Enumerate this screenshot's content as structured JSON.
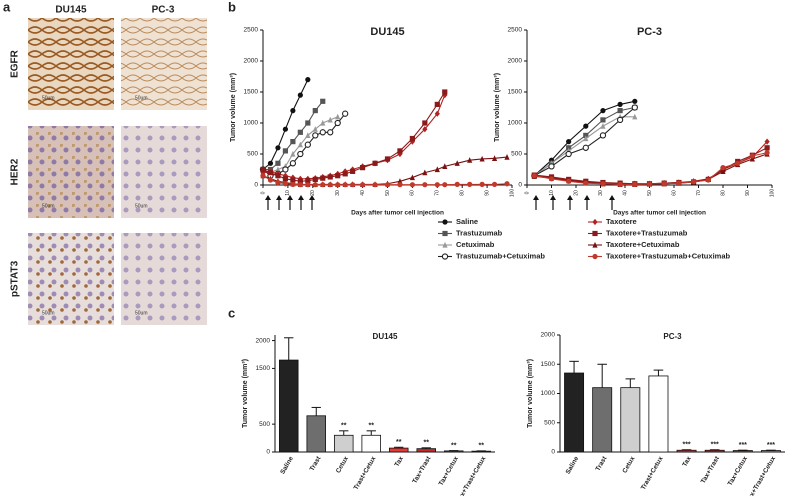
{
  "panel_a": {
    "label": "a",
    "columns": [
      "DU145",
      "PC-3"
    ],
    "rows": [
      "EGFR",
      "HER2",
      "pSTAT3"
    ],
    "scale_bar": "50um"
  },
  "panel_b_label": "b",
  "panel_c_label": "c",
  "chart_data": [
    {
      "type": "line",
      "title": "DU145",
      "y_label": "Tumor volume (mm³)",
      "x_label": "Days after tumor cell injection",
      "x": [
        0,
        3,
        6,
        9,
        12,
        15,
        18,
        21,
        24,
        27,
        30,
        33,
        36,
        40,
        45,
        50,
        55,
        60,
        65,
        70,
        73,
        78,
        83,
        88,
        93,
        98
      ],
      "xlim": [
        0,
        100
      ],
      "xticks": [
        0,
        10,
        20,
        30,
        40,
        50,
        60,
        70,
        80,
        90,
        100
      ],
      "ylim": [
        0,
        2500
      ],
      "yticks": [
        0,
        500,
        1000,
        1500,
        2000,
        2500
      ],
      "series": [
        {
          "name": "Saline",
          "color": "#111111",
          "marker": "circle",
          "values": [
            250,
            350,
            600,
            900,
            1200,
            1450,
            1700,
            null,
            null,
            null,
            null,
            null,
            null,
            null,
            null,
            null,
            null,
            null,
            null,
            null,
            null,
            null,
            null,
            null,
            null,
            null
          ]
        },
        {
          "name": "Trastuzumab",
          "color": "#555555",
          "marker": "square",
          "values": [
            250,
            250,
            350,
            550,
            700,
            850,
            1000,
            1200,
            1350,
            null,
            null,
            null,
            null,
            null,
            null,
            null,
            null,
            null,
            null,
            null,
            null,
            null,
            null,
            null,
            null,
            null
          ]
        },
        {
          "name": "Cetuximab",
          "color": "#999999",
          "marker": "triangle",
          "values": [
            200,
            200,
            250,
            300,
            500,
            650,
            800,
            900,
            1000,
            1050,
            1100,
            null,
            null,
            null,
            null,
            null,
            null,
            null,
            null,
            null,
            null,
            null,
            null,
            null,
            null,
            null
          ]
        },
        {
          "name": "Trastuzumab+Cetuximab",
          "color": "#222222",
          "marker": "open-circle",
          "values": [
            250,
            150,
            180,
            250,
            350,
            500,
            650,
            800,
            850,
            850,
            1000,
            1150,
            null,
            null,
            null,
            null,
            null,
            null,
            null,
            null,
            null,
            null,
            null,
            null,
            null,
            null
          ]
        },
        {
          "name": "Taxotere",
          "color": "#b22222",
          "marker": "diamond",
          "values": [
            200,
            220,
            180,
            150,
            120,
            100,
            100,
            110,
            130,
            150,
            180,
            220,
            250,
            300,
            350,
            400,
            500,
            700,
            900,
            1150,
            1450,
            null,
            null,
            null,
            null,
            null
          ]
        },
        {
          "name": "Taxotere+Trastuzumab",
          "color": "#8b1a1a",
          "marker": "square",
          "values": [
            250,
            200,
            150,
            100,
            80,
            60,
            70,
            90,
            110,
            130,
            150,
            180,
            220,
            280,
            350,
            420,
            550,
            750,
            1000,
            1300,
            1500,
            null,
            null,
            null,
            null,
            null
          ]
        },
        {
          "name": "Taxotere+Cetuximab",
          "color": "#7a1010",
          "marker": "triangle",
          "values": [
            150,
            100,
            60,
            40,
            20,
            10,
            10,
            10,
            10,
            10,
            10,
            10,
            10,
            10,
            10,
            20,
            60,
            120,
            200,
            250,
            300,
            350,
            400,
            420,
            430,
            450
          ]
        },
        {
          "name": "Taxotere+Trastuzumab+Cetuximab",
          "color": "#c0392b",
          "marker": "circle",
          "values": [
            150,
            80,
            40,
            20,
            10,
            5,
            5,
            5,
            5,
            5,
            5,
            5,
            5,
            5,
            5,
            5,
            5,
            5,
            5,
            5,
            5,
            10,
            10,
            10,
            10,
            20
          ]
        }
      ]
    },
    {
      "type": "line",
      "title": "PC-3",
      "y_label": "Tumor volume (mm³)",
      "x_label": "Days after tumor cell injection",
      "x": [
        3,
        10,
        17,
        24,
        31,
        38,
        44,
        50,
        56,
        62,
        68,
        74,
        80,
        86,
        92,
        98
      ],
      "xlim": [
        0,
        100
      ],
      "xticks": [
        0,
        10,
        20,
        30,
        40,
        50,
        60,
        70,
        80,
        90,
        100
      ],
      "ylim": [
        0,
        2500
      ],
      "yticks": [
        0,
        500,
        1000,
        1500,
        2000,
        2500
      ],
      "series": [
        {
          "color": "#111111",
          "marker": "circle",
          "values": [
            150,
            400,
            700,
            950,
            1200,
            1300,
            1350,
            null,
            null,
            null,
            null,
            null,
            null,
            null,
            null,
            null
          ]
        },
        {
          "color": "#555555",
          "marker": "square",
          "values": [
            150,
            350,
            600,
            800,
            1050,
            1200,
            1250,
            null,
            null,
            null,
            null,
            null,
            null,
            null,
            null,
            null
          ]
        },
        {
          "color": "#999999",
          "marker": "triangle",
          "values": [
            150,
            350,
            550,
            750,
            950,
            1100,
            1100,
            null,
            null,
            null,
            null,
            null,
            null,
            null,
            null,
            null
          ]
        },
        {
          "color": "#222222",
          "marker": "open-circle",
          "values": [
            150,
            300,
            500,
            600,
            800,
            1050,
            1250,
            null,
            null,
            null,
            null,
            null,
            null,
            null,
            null,
            null
          ]
        },
        {
          "color": "#b22222",
          "marker": "diamond",
          "values": [
            150,
            120,
            80,
            50,
            30,
            20,
            20,
            20,
            30,
            40,
            60,
            100,
            250,
            350,
            450,
            700
          ]
        },
        {
          "color": "#8b1a1a",
          "marker": "square",
          "values": [
            160,
            130,
            90,
            60,
            40,
            30,
            20,
            20,
            30,
            40,
            50,
            90,
            250,
            380,
            480,
            600
          ]
        },
        {
          "color": "#7a1010",
          "marker": "triangle",
          "values": [
            140,
            110,
            70,
            40,
            20,
            10,
            10,
            15,
            20,
            30,
            50,
            90,
            220,
            330,
            420,
            500
          ]
        },
        {
          "color": "#c0392b",
          "marker": "circle",
          "values": [
            150,
            100,
            60,
            30,
            20,
            10,
            10,
            15,
            20,
            30,
            50,
            80,
            280,
            350,
            470,
            520
          ]
        }
      ]
    },
    {
      "type": "bar",
      "title": "DU145",
      "y_label": "Tumor volume (mm³)",
      "categories": [
        "Saline",
        "Trast",
        "Cetux",
        "Trast+Cetux",
        "Tax",
        "Tax+Trast",
        "Tax+Cetux",
        "Tax+Trast+Cetux"
      ],
      "values": [
        1650,
        650,
        300,
        300,
        70,
        60,
        20,
        15
      ],
      "errors": [
        400,
        150,
        80,
        80,
        15,
        15,
        5,
        5
      ],
      "colors": [
        "#222222",
        "#6e6e6e",
        "#cfcfcf",
        "#ffffff",
        "#e53935",
        "#c62828",
        "#d32f2f",
        "#e57373"
      ],
      "annotations": [
        null,
        null,
        "**",
        "**",
        "**",
        "**",
        "**",
        "**"
      ],
      "ylim": [
        0,
        2100
      ],
      "yticks": [
        0,
        500,
        1500,
        2000
      ]
    },
    {
      "type": "bar",
      "title": "PC-3",
      "y_label": "Tumor volume (mm³)",
      "categories": [
        "Saline",
        "Trast",
        "Cetux",
        "Trast+Cetux",
        "Tax",
        "Tax+Trast",
        "Tax+Cetux",
        "Tax+Trast+Cetux"
      ],
      "values": [
        1350,
        1100,
        1100,
        1300,
        30,
        30,
        25,
        25
      ],
      "errors": [
        200,
        400,
        150,
        100,
        8,
        8,
        6,
        6
      ],
      "colors": [
        "#222222",
        "#6e6e6e",
        "#cfcfcf",
        "#ffffff",
        "#e53935",
        "#c62828",
        "#d32f2f",
        "#e57373"
      ],
      "annotations": [
        null,
        null,
        null,
        null,
        "***",
        "***",
        "***",
        "***"
      ],
      "ylim": [
        0,
        2000
      ],
      "yticks": [
        0,
        500,
        1000,
        1500,
        2000
      ]
    }
  ]
}
